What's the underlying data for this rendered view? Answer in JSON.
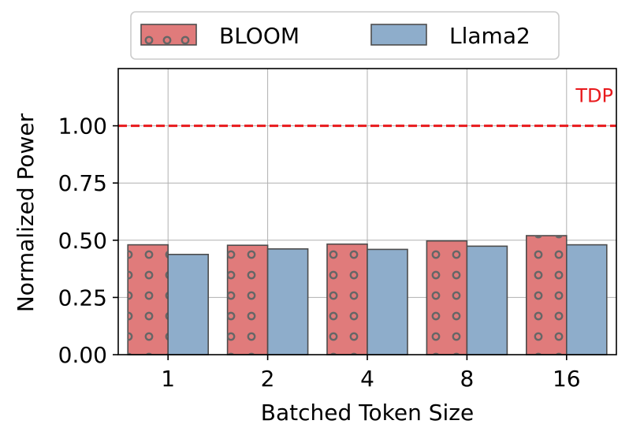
{
  "chart_data": {
    "type": "bar",
    "categories": [
      "1",
      "2",
      "4",
      "8",
      "16"
    ],
    "series": [
      {
        "name": "BLOOM",
        "values": [
          0.48,
          0.478,
          0.483,
          0.497,
          0.52
        ],
        "color": "#e07b7b",
        "pattern": "circles"
      },
      {
        "name": "Llama2",
        "values": [
          0.438,
          0.462,
          0.46,
          0.474,
          0.48
        ],
        "color": "#8eadcb",
        "pattern": "none"
      }
    ],
    "xlabel": "Batched Token Size",
    "ylabel": "Normalized Power",
    "ylim": [
      0,
      1.25
    ],
    "yticks": [
      0.0,
      0.25,
      0.5,
      0.75,
      1.0
    ],
    "ytick_labels": [
      "0.00",
      "0.25",
      "0.50",
      "0.75",
      "1.00"
    ],
    "grid": true,
    "legend_position": "top",
    "reference_line": {
      "value": 1.0,
      "label": "TDP",
      "color": "#e8191c",
      "style": "dashed"
    }
  }
}
